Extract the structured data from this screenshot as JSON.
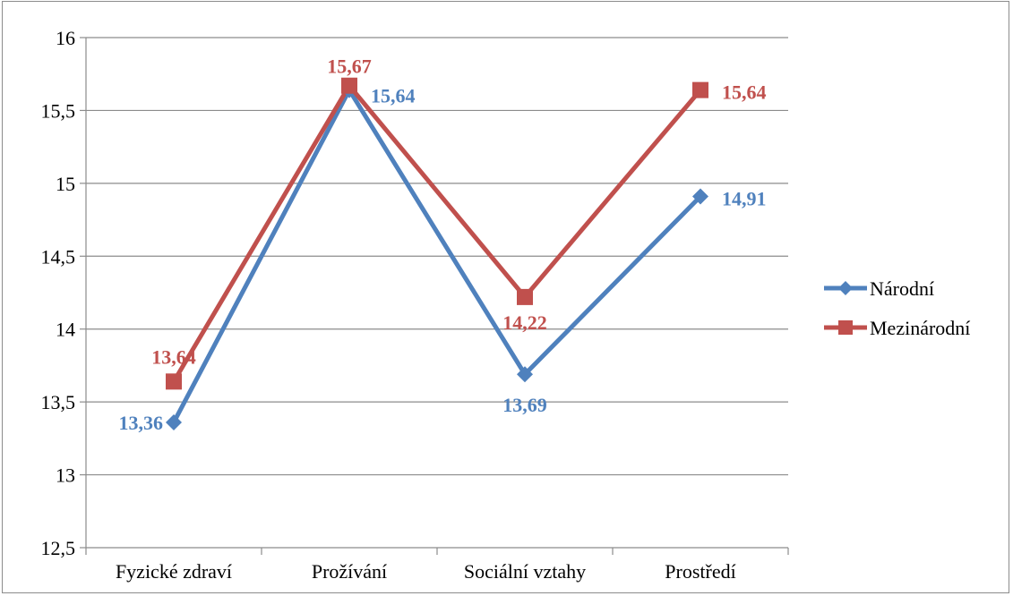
{
  "chart_data": {
    "type": "line",
    "categories": [
      "Fyzické zdraví",
      "Prožívání",
      "Sociální vztahy",
      "Prostředí"
    ],
    "series": [
      {
        "name": "Národní",
        "values": [
          13.36,
          15.64,
          13.69,
          14.91
        ],
        "labels": [
          "13,36",
          "15,64",
          "13,69",
          "14,91"
        ],
        "color": "#4f81bd",
        "marker": "diamond"
      },
      {
        "name": "Mezinárodní",
        "values": [
          13.64,
          15.67,
          14.22,
          15.64
        ],
        "labels": [
          "13,64",
          "15,67",
          "14,22",
          "15,64"
        ],
        "color": "#c0504d",
        "marker": "square"
      }
    ],
    "yticks": [
      "12,5",
      "13",
      "13,5",
      "14",
      "14,5",
      "15",
      "15,5",
      "16"
    ],
    "ylim": [
      12.5,
      16
    ],
    "ytick_step": 0.5,
    "grid": true,
    "legend": "right",
    "title": "",
    "xlabel": "",
    "ylabel": ""
  }
}
